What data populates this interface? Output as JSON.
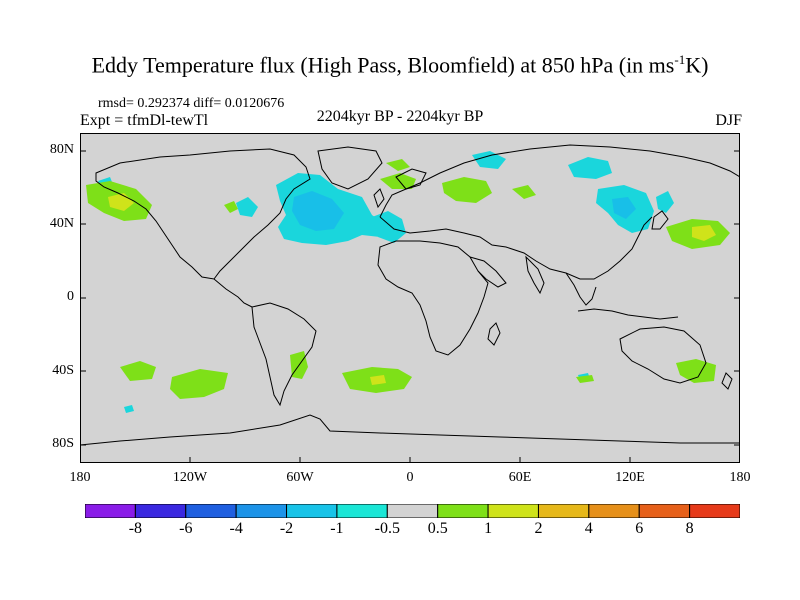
{
  "title": {
    "main": "Eddy Temperature flux (High Pass, Bloomfield) at 850 hPa (in ms",
    "superscript": "-1",
    "suffix": "K)"
  },
  "header": {
    "stats": "rmsd= 0.292374 diff= 0.0120676",
    "experiment": "Expt = tfmDl-tewTl",
    "period": "2204kyr BP - 2204kyr BP",
    "season": "DJF"
  },
  "axes": {
    "lat_labels": [
      "80N",
      "40N",
      "0",
      "40S",
      "80S"
    ],
    "lon_labels": [
      "180",
      "120W",
      "60W",
      "0",
      "60E",
      "120E",
      "180"
    ]
  },
  "colorbar": {
    "labels": [
      "-8",
      "-6",
      "-4",
      "-2",
      "-1",
      "-0.5",
      "0.5",
      "1",
      "2",
      "4",
      "6",
      "8"
    ],
    "colors": [
      "#8a1ce8",
      "#3a28e0",
      "#1f5fe0",
      "#1c93e8",
      "#18c3e8",
      "#1ae6d6",
      "#d3d3d3",
      "#7ee018",
      "#cfe31a",
      "#e6b81a",
      "#e6901a",
      "#e6601a",
      "#e63a1a"
    ]
  },
  "map": {
    "background": "#d3d3d3",
    "negative_color": "#1ad6dc",
    "negative_strong_color": "#18bfe8",
    "positive_color": "#7ee018",
    "positive_strong_color": "#cfe31a"
  }
}
